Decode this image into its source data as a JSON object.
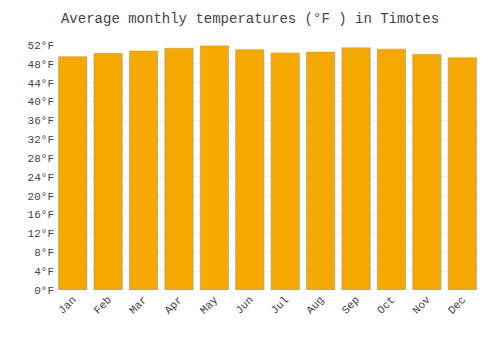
{
  "chart_data": {
    "type": "bar",
    "title": "Average monthly temperatures (°F ) in Timotes",
    "categories": [
      "Jan",
      "Feb",
      "Mar",
      "Apr",
      "May",
      "Jun",
      "Jul",
      "Aug",
      "Sep",
      "Oct",
      "Nov",
      "Dec"
    ],
    "values": [
      49.5,
      50.2,
      50.7,
      51.3,
      51.8,
      51.0,
      50.3,
      50.5,
      51.4,
      51.1,
      50.0,
      49.3
    ],
    "color": "#F5A800",
    "ylim": [
      0,
      52
    ],
    "yticks": [
      {
        "value": 0,
        "label": "0°F"
      },
      {
        "value": 4,
        "label": "4°F"
      },
      {
        "value": 8,
        "label": "8°F"
      },
      {
        "value": 12,
        "label": "12°F"
      },
      {
        "value": 16,
        "label": "16°F"
      },
      {
        "value": 20,
        "label": "20°F"
      },
      {
        "value": 24,
        "label": "24°F"
      },
      {
        "value": 28,
        "label": "28°F"
      },
      {
        "value": 32,
        "label": "32°F"
      },
      {
        "value": 36,
        "label": "36°F"
      },
      {
        "value": 40,
        "label": "40°F"
      },
      {
        "value": 44,
        "label": "44°F"
      },
      {
        "value": 48,
        "label": "48°F"
      },
      {
        "value": 52,
        "label": "52°F"
      }
    ],
    "grid": true
  }
}
